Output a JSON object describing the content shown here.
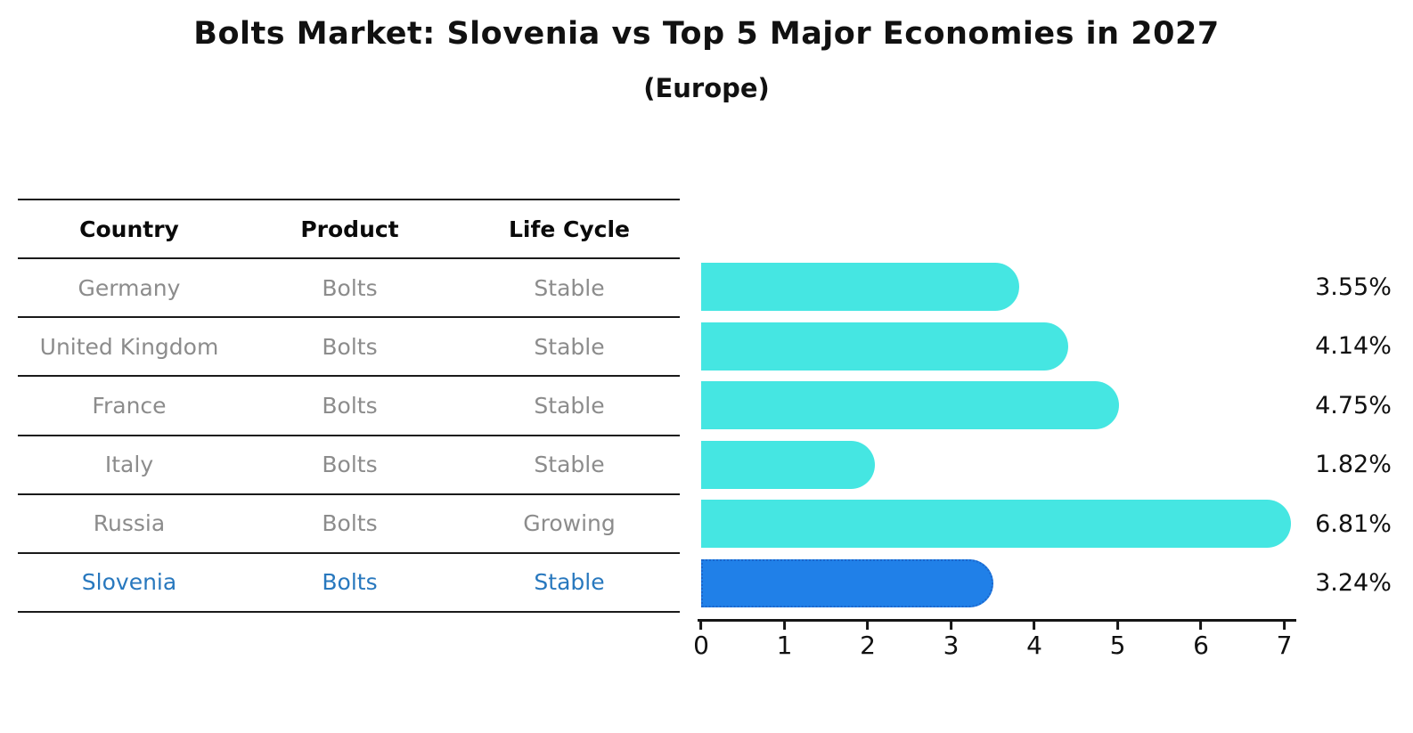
{
  "chart_data": {
    "type": "bar",
    "orientation": "horizontal",
    "title": "Bolts Market: Slovenia vs Top 5 Major Economies in 2027",
    "subtitle": "(Europe)",
    "categories": [
      "Germany",
      "United Kingdom",
      "France",
      "Italy",
      "Russia",
      "Slovenia"
    ],
    "values": [
      3.55,
      4.14,
      4.75,
      1.82,
      6.81,
      3.24
    ],
    "value_labels": [
      "3.55%",
      "4.14%",
      "4.75%",
      "1.82%",
      "6.81%",
      "3.24%"
    ],
    "x_ticks": [
      0,
      1,
      2,
      3,
      4,
      5,
      6,
      7
    ],
    "xlim": [
      0,
      7
    ],
    "grid": false,
    "legend": false,
    "bar_color": "#45e6e2",
    "highlight_index": 5,
    "highlight_bar_color": "#2080e8",
    "highlight_border_color": "#1b66cc"
  },
  "table": {
    "headers": [
      "Country",
      "Product",
      "Life Cycle"
    ],
    "rows": [
      {
        "country": "Germany",
        "product": "Bolts",
        "life_cycle": "Stable",
        "highlight": false
      },
      {
        "country": "United Kingdom",
        "product": "Bolts",
        "life_cycle": "Stable",
        "highlight": false
      },
      {
        "country": "France",
        "product": "Bolts",
        "life_cycle": "Stable",
        "highlight": false
      },
      {
        "country": "Italy",
        "product": "Bolts",
        "life_cycle": "Stable",
        "highlight": false
      },
      {
        "country": "Russia",
        "product": "Bolts",
        "life_cycle": "Growing",
        "highlight": false
      },
      {
        "country": "Slovenia",
        "product": "Bolts",
        "life_cycle": "Stable",
        "highlight": true
      }
    ]
  },
  "colors": {
    "row_text": "#8c8c8c",
    "highlight_text": "#2878be",
    "header_text": "#0a0a0a",
    "axis_color": "#151515"
  }
}
